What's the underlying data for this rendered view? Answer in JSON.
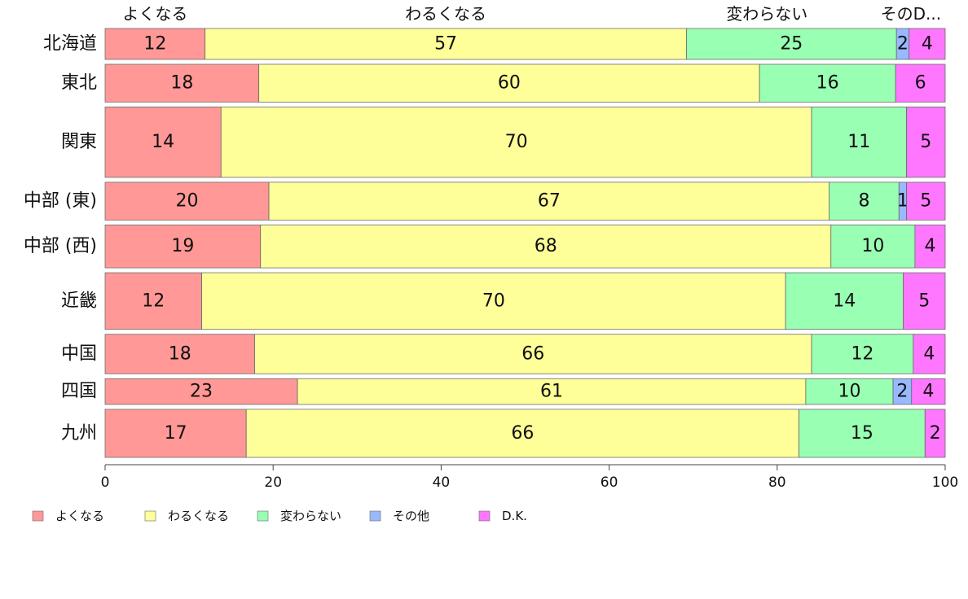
{
  "chart_data": {
    "type": "bar",
    "orientation": "horizontal",
    "stacked": true,
    "categories": [
      "北海道",
      "東北",
      "関東",
      "中部 (東)",
      "中部 (西)",
      "近畿",
      "中国",
      "四国",
      "九州"
    ],
    "relative_row_heights": [
      36,
      44,
      82,
      44,
      50,
      66,
      46,
      30,
      56
    ],
    "column_headers": [
      "よくなる",
      "わるくなる",
      "変わらない",
      "そのD..."
    ],
    "series": [
      {
        "name": "よくなる",
        "color": "#ff9896",
        "values": [
          11.9,
          18.3,
          13.8,
          19.5,
          18.5,
          11.5,
          17.8,
          22.9,
          16.8
        ]
      },
      {
        "name": "わるくなる",
        "color": "#ffff99",
        "values": [
          57.3,
          59.6,
          70.3,
          66.7,
          67.9,
          69.5,
          66.3,
          60.5,
          65.8
        ]
      },
      {
        "name": "変わらない",
        "color": "#98ffb3",
        "values": [
          25.0,
          16.2,
          11.3,
          8.3,
          10.0,
          14.0,
          12.1,
          10.4,
          15.0
        ]
      },
      {
        "name": "その他",
        "color": "#98b8ff",
        "values": [
          1.5,
          0.0,
          0.0,
          0.9,
          0.0,
          0.0,
          0.0,
          2.2,
          0.0
        ]
      },
      {
        "name": "D.K.",
        "color": "#ff77ff",
        "values": [
          4.3,
          5.9,
          4.6,
          4.6,
          3.6,
          5.0,
          3.8,
          4.0,
          2.4
        ]
      }
    ],
    "xlim": [
      0,
      100
    ],
    "x_ticks": [
      0,
      20,
      40,
      60,
      80,
      100
    ],
    "grid": false,
    "legend_position": "bottom-left",
    "title": "",
    "xlabel": "",
    "ylabel": ""
  }
}
